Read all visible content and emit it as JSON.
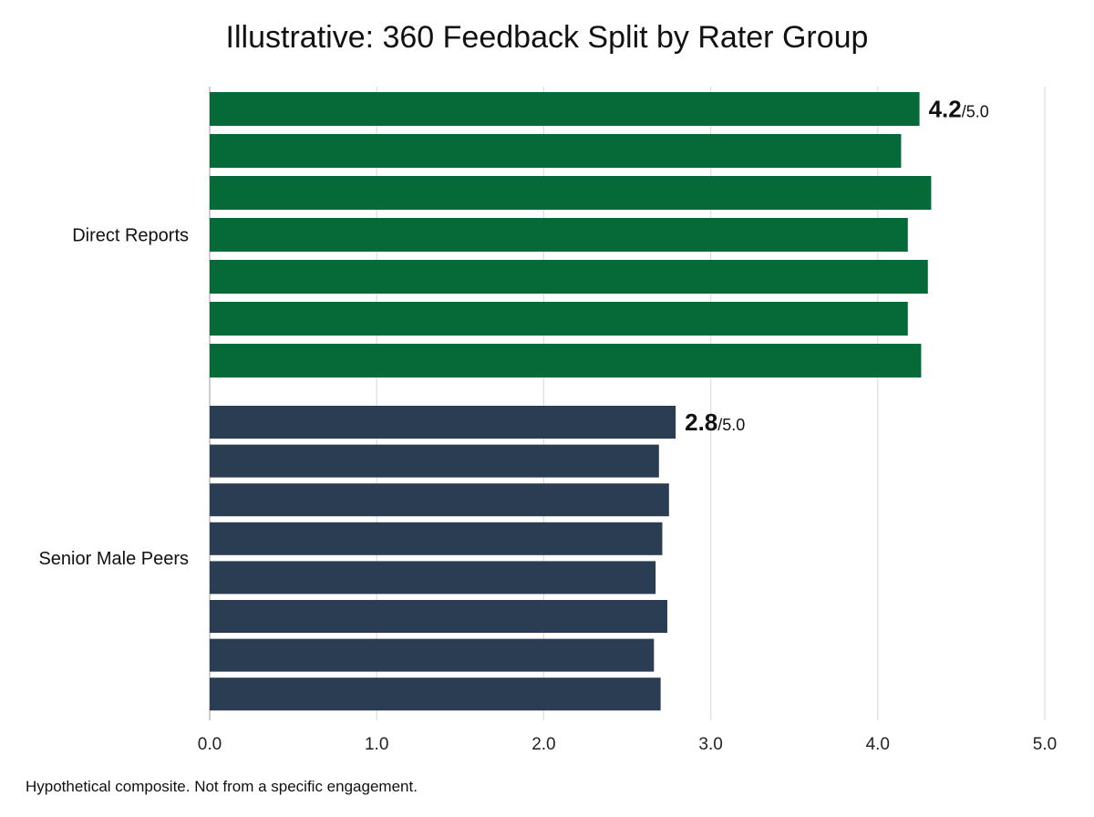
{
  "chart_data": {
    "type": "bar",
    "orientation": "horizontal",
    "title": "Illustrative: 360 Feedback Split by Rater Group",
    "footnote": "Hypothetical composite. Not from a specific engagement.",
    "xlim": [
      0,
      5
    ],
    "xticks": [
      "0.0",
      "1.0",
      "2.0",
      "3.0",
      "4.0",
      "5.0"
    ],
    "grid": true,
    "groups": [
      {
        "name": "Direct Reports",
        "color": "#056a38",
        "summary_value": "4.2",
        "summary_suffix": "/5.0",
        "values": [
          4.25,
          4.14,
          4.32,
          4.18,
          4.3,
          4.18,
          4.26
        ]
      },
      {
        "name": "Senior Male Peers",
        "color": "#2b3d52",
        "summary_value": "2.8",
        "summary_suffix": "/5.0",
        "values": [
          2.79,
          2.69,
          2.75,
          2.71,
          2.67,
          2.74,
          2.66,
          2.7
        ]
      }
    ]
  }
}
